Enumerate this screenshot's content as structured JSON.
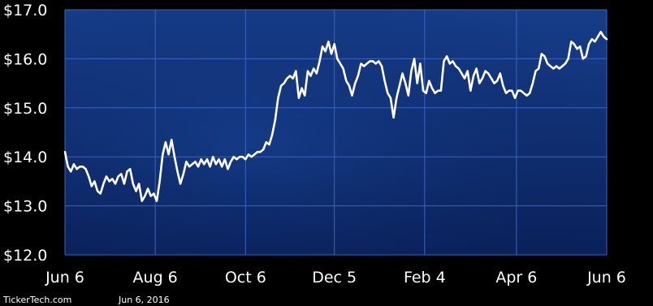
{
  "chart_data": {
    "type": "line",
    "title": "",
    "xlabel": "",
    "ylabel": "",
    "ylim": [
      12.0,
      17.0
    ],
    "y_ticks": [
      "$12.0",
      "$13.0",
      "$14.0",
      "$15.0",
      "$16.0",
      "$17.0"
    ],
    "y_tick_values": [
      12.0,
      13.0,
      14.0,
      15.0,
      16.0,
      17.0
    ],
    "x_ticks": [
      "Jun 6",
      "Aug 6",
      "Oct 6",
      "Dec 5",
      "Feb 4",
      "Apr 6",
      "Jun 6"
    ],
    "x_tick_values": [
      0,
      61,
      122,
      182,
      243,
      305,
      366
    ],
    "xlim": [
      0,
      366
    ],
    "grid": true,
    "legend": "none",
    "colors": {
      "background": "#000000",
      "plot_bg_top": "#163d8a",
      "plot_bg_bottom": "#0a215a",
      "grid": "#3a63c4",
      "line": "#ffffff",
      "text": "#ffffff"
    },
    "series": [
      {
        "values": [
          [
            0,
            14.1
          ],
          [
            2,
            13.8
          ],
          [
            4,
            13.7
          ],
          [
            6,
            13.85
          ],
          [
            8,
            13.75
          ],
          [
            10,
            13.8
          ],
          [
            12,
            13.8
          ],
          [
            14,
            13.75
          ],
          [
            16,
            13.6
          ],
          [
            18,
            13.4
          ],
          [
            20,
            13.5
          ],
          [
            22,
            13.3
          ],
          [
            24,
            13.25
          ],
          [
            26,
            13.45
          ],
          [
            28,
            13.6
          ],
          [
            30,
            13.5
          ],
          [
            32,
            13.55
          ],
          [
            34,
            13.45
          ],
          [
            36,
            13.6
          ],
          [
            38,
            13.65
          ],
          [
            40,
            13.45
          ],
          [
            42,
            13.7
          ],
          [
            44,
            13.75
          ],
          [
            46,
            13.45
          ],
          [
            48,
            13.3
          ],
          [
            50,
            13.45
          ],
          [
            52,
            13.1
          ],
          [
            54,
            13.2
          ],
          [
            56,
            13.35
          ],
          [
            58,
            13.2
          ],
          [
            60,
            13.25
          ],
          [
            62,
            13.1
          ],
          [
            64,
            13.5
          ],
          [
            66,
            14.05
          ],
          [
            68,
            14.3
          ],
          [
            70,
            14.05
          ],
          [
            72,
            14.35
          ],
          [
            74,
            14.0
          ],
          [
            76,
            13.7
          ],
          [
            78,
            13.45
          ],
          [
            80,
            13.65
          ],
          [
            82,
            13.9
          ],
          [
            84,
            13.8
          ],
          [
            86,
            13.85
          ],
          [
            88,
            13.9
          ],
          [
            90,
            13.8
          ],
          [
            92,
            13.95
          ],
          [
            94,
            13.85
          ],
          [
            96,
            13.95
          ],
          [
            98,
            13.8
          ],
          [
            100,
            14.0
          ],
          [
            102,
            13.85
          ],
          [
            104,
            13.95
          ],
          [
            106,
            13.8
          ],
          [
            108,
            13.95
          ],
          [
            110,
            13.75
          ],
          [
            112,
            13.9
          ],
          [
            114,
            14.0
          ],
          [
            116,
            13.95
          ],
          [
            118,
            14.0
          ],
          [
            120,
            14.0
          ],
          [
            122,
            13.95
          ],
          [
            124,
            14.05
          ],
          [
            126,
            14.0
          ],
          [
            128,
            14.05
          ],
          [
            130,
            14.1
          ],
          [
            132,
            14.1
          ],
          [
            134,
            14.15
          ],
          [
            136,
            14.3
          ],
          [
            138,
            14.25
          ],
          [
            140,
            14.45
          ],
          [
            142,
            14.75
          ],
          [
            144,
            15.2
          ],
          [
            146,
            15.45
          ],
          [
            148,
            15.5
          ],
          [
            150,
            15.6
          ],
          [
            152,
            15.65
          ],
          [
            154,
            15.6
          ],
          [
            156,
            15.75
          ],
          [
            158,
            15.2
          ],
          [
            160,
            15.4
          ],
          [
            162,
            15.25
          ],
          [
            164,
            15.75
          ],
          [
            166,
            15.65
          ],
          [
            168,
            15.8
          ],
          [
            170,
            15.7
          ],
          [
            172,
            15.95
          ],
          [
            174,
            16.25
          ],
          [
            176,
            16.15
          ],
          [
            178,
            16.35
          ],
          [
            180,
            16.1
          ],
          [
            182,
            16.3
          ],
          [
            184,
            16.0
          ],
          [
            186,
            15.9
          ],
          [
            188,
            15.8
          ],
          [
            190,
            15.55
          ],
          [
            192,
            15.45
          ],
          [
            194,
            15.25
          ],
          [
            196,
            15.5
          ],
          [
            198,
            15.65
          ],
          [
            200,
            15.9
          ],
          [
            202,
            15.85
          ],
          [
            204,
            15.9
          ],
          [
            206,
            15.95
          ],
          [
            208,
            15.95
          ],
          [
            210,
            15.9
          ],
          [
            212,
            15.95
          ],
          [
            214,
            15.85
          ],
          [
            216,
            15.55
          ],
          [
            218,
            15.3
          ],
          [
            220,
            15.2
          ],
          [
            222,
            14.8
          ],
          [
            224,
            15.2
          ],
          [
            226,
            15.45
          ],
          [
            228,
            15.7
          ],
          [
            230,
            15.5
          ],
          [
            232,
            15.25
          ],
          [
            234,
            15.75
          ],
          [
            236,
            16.0
          ],
          [
            238,
            15.5
          ],
          [
            240,
            15.9
          ],
          [
            242,
            15.35
          ],
          [
            244,
            15.3
          ],
          [
            246,
            15.55
          ],
          [
            248,
            15.4
          ],
          [
            250,
            15.3
          ],
          [
            252,
            15.35
          ],
          [
            254,
            15.35
          ],
          [
            256,
            15.95
          ],
          [
            258,
            16.05
          ],
          [
            260,
            15.9
          ],
          [
            262,
            15.95
          ],
          [
            264,
            15.85
          ],
          [
            266,
            15.8
          ],
          [
            268,
            15.7
          ],
          [
            270,
            15.6
          ],
          [
            272,
            15.75
          ],
          [
            274,
            15.35
          ],
          [
            276,
            15.65
          ],
          [
            278,
            15.8
          ],
          [
            280,
            15.5
          ],
          [
            282,
            15.6
          ],
          [
            284,
            15.75
          ],
          [
            286,
            15.7
          ],
          [
            288,
            15.6
          ],
          [
            290,
            15.5
          ],
          [
            292,
            15.55
          ],
          [
            294,
            15.7
          ],
          [
            296,
            15.45
          ],
          [
            298,
            15.3
          ],
          [
            300,
            15.35
          ],
          [
            302,
            15.35
          ],
          [
            304,
            15.2
          ],
          [
            306,
            15.35
          ],
          [
            308,
            15.35
          ],
          [
            310,
            15.3
          ],
          [
            312,
            15.25
          ],
          [
            314,
            15.3
          ],
          [
            316,
            15.5
          ],
          [
            318,
            15.75
          ],
          [
            320,
            15.8
          ],
          [
            322,
            16.1
          ],
          [
            324,
            16.05
          ],
          [
            326,
            15.9
          ],
          [
            328,
            15.85
          ],
          [
            330,
            15.8
          ],
          [
            332,
            15.85
          ],
          [
            334,
            15.8
          ],
          [
            336,
            15.85
          ],
          [
            338,
            15.9
          ],
          [
            340,
            16.0
          ],
          [
            342,
            16.35
          ],
          [
            344,
            16.3
          ],
          [
            346,
            16.2
          ],
          [
            348,
            16.25
          ],
          [
            350,
            16.0
          ],
          [
            352,
            16.05
          ],
          [
            354,
            16.3
          ],
          [
            356,
            16.4
          ],
          [
            358,
            16.35
          ],
          [
            360,
            16.45
          ],
          [
            362,
            16.55
          ],
          [
            364,
            16.45
          ],
          [
            366,
            16.4
          ]
        ]
      }
    ]
  },
  "footer": {
    "source": "TickerTech.com",
    "date": "Jun 6, 2016"
  }
}
